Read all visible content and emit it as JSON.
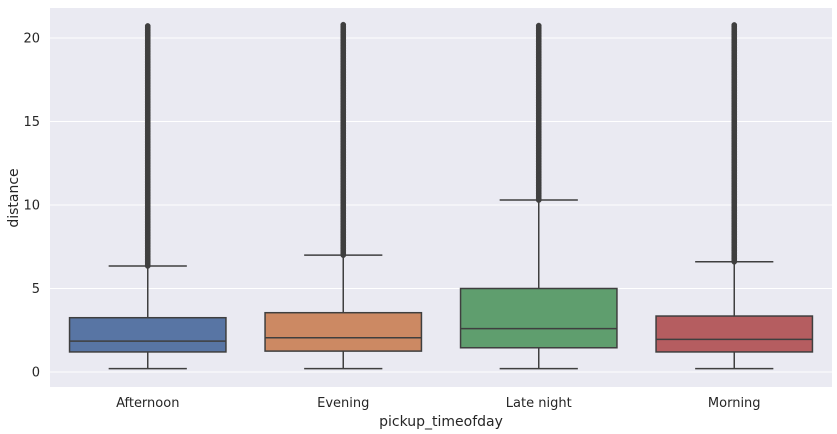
{
  "chart_data": {
    "type": "box",
    "xlabel": "pickup_timeofday",
    "ylabel": "distance",
    "ylim": [
      -0.9,
      21.8
    ],
    "yticks": [
      0,
      5,
      10,
      15,
      20
    ],
    "grid": true,
    "background": "#EAEAF2",
    "categories": [
      "Afternoon",
      "Evening",
      "Late night",
      "Morning"
    ],
    "boxes": [
      {
        "category": "Afternoon",
        "whisker_low": 0.2,
        "q1": 1.2,
        "median": 1.85,
        "q3": 3.25,
        "whisker_high": 6.35,
        "outliers_from": 6.35,
        "outliers_to": 20.8,
        "color": "#5875A4"
      },
      {
        "category": "Evening",
        "whisker_low": 0.2,
        "q1": 1.25,
        "median": 2.05,
        "q3": 3.55,
        "whisker_high": 7.0,
        "outliers_from": 7.0,
        "outliers_to": 20.8,
        "color": "#CC8963"
      },
      {
        "category": "Late night",
        "whisker_low": 0.2,
        "q1": 1.45,
        "median": 2.6,
        "q3": 5.0,
        "whisker_high": 10.3,
        "outliers_from": 10.3,
        "outliers_to": 20.8,
        "color": "#5F9E6E"
      },
      {
        "category": "Morning",
        "whisker_low": 0.2,
        "q1": 1.2,
        "median": 1.95,
        "q3": 3.35,
        "whisker_high": 6.6,
        "outliers_from": 6.6,
        "outliers_to": 20.8,
        "color": "#B55D60"
      }
    ],
    "line_color": "#3F3F3F"
  }
}
